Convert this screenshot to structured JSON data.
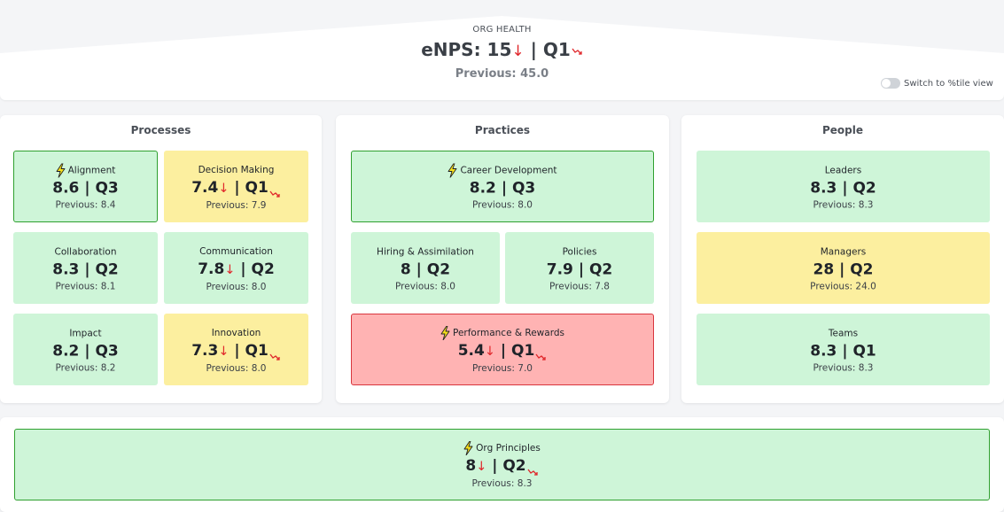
{
  "header": {
    "caption": "ORG HEALTH",
    "score_prefix": "eNPS: 15",
    "score_quarter": "| Q1",
    "previous": "Previous: 45.0",
    "toggle_label": "Switch to %tile view"
  },
  "processes": {
    "title": "Processes",
    "cards": [
      {
        "name": "Alignment",
        "value": "8.6",
        "quarter": "| Q3",
        "previous": "Previous: 8.4",
        "status": "green",
        "lightning": true,
        "down": false
      },
      {
        "name": "Decision Making",
        "value": "7.4",
        "quarter": "| Q1",
        "previous": "Previous: 7.9",
        "status": "yellow",
        "lightning": false,
        "down": true
      },
      {
        "name": "Collaboration",
        "value": "8.3",
        "quarter": "| Q2",
        "previous": "Previous: 8.1",
        "status": "green",
        "lightning": false,
        "down": false
      },
      {
        "name": "Communication",
        "value": "7.8",
        "quarter": "| Q2",
        "previous": "Previous: 8.0",
        "status": "green",
        "lightning": false,
        "down": true
      },
      {
        "name": "Impact",
        "value": "8.2",
        "quarter": "| Q3",
        "previous": "Previous: 8.2",
        "status": "green",
        "lightning": false,
        "down": false
      },
      {
        "name": "Innovation",
        "value": "7.3",
        "quarter": "| Q1",
        "previous": "Previous: 8.0",
        "status": "yellow",
        "lightning": false,
        "down": true
      }
    ]
  },
  "practices": {
    "title": "Practices",
    "cards": [
      {
        "name": "Career Development",
        "value": "8.2",
        "quarter": "| Q3",
        "previous": "Previous: 8.0",
        "status": "green",
        "lightning": true,
        "down": false
      },
      {
        "name": "Hiring & Assimilation",
        "value": "8",
        "quarter": "| Q2",
        "previous": "Previous: 8.0",
        "status": "green",
        "lightning": false,
        "down": false
      },
      {
        "name": "Policies",
        "value": "7.9",
        "quarter": "| Q2",
        "previous": "Previous: 7.8",
        "status": "green",
        "lightning": false,
        "down": false
      },
      {
        "name": "Performance & Rewards",
        "value": "5.4",
        "quarter": "| Q1",
        "previous": "Previous: 7.0",
        "status": "red",
        "lightning": true,
        "down": true
      }
    ]
  },
  "people": {
    "title": "People",
    "cards": [
      {
        "name": "Leaders",
        "value": "8.3",
        "quarter": "| Q2",
        "previous": "Previous: 8.3",
        "status": "green",
        "lightning": false,
        "down": false
      },
      {
        "name": "Managers",
        "value": "28",
        "quarter": "| Q2",
        "previous": "Previous: 24.0",
        "status": "yellow",
        "lightning": false,
        "down": false
      },
      {
        "name": "Teams",
        "value": "8.3",
        "quarter": "| Q1",
        "previous": "Previous: 8.3",
        "status": "green",
        "lightning": false,
        "down": false
      }
    ]
  },
  "principles": {
    "name": "Org Principles",
    "value": "8",
    "quarter": "| Q2",
    "previous": "Previous: 8.3",
    "status": "green",
    "lightning": true,
    "down": true
  },
  "colors": {
    "green_card": "#cef5d8",
    "yellow_card": "#fcef9f",
    "red_card": "#ffb3b3",
    "outline_green": "#2fa02f",
    "down_arrow": "#e0262a",
    "lightning": "#f7e11b"
  },
  "icons": {
    "lightning": "lightning-bolt-icon",
    "down": "arrow-down-icon",
    "trend": "downtrend-icon",
    "toggle": "toggle-switch-icon"
  },
  "glyphs": {
    "down_arrow": "↓"
  }
}
